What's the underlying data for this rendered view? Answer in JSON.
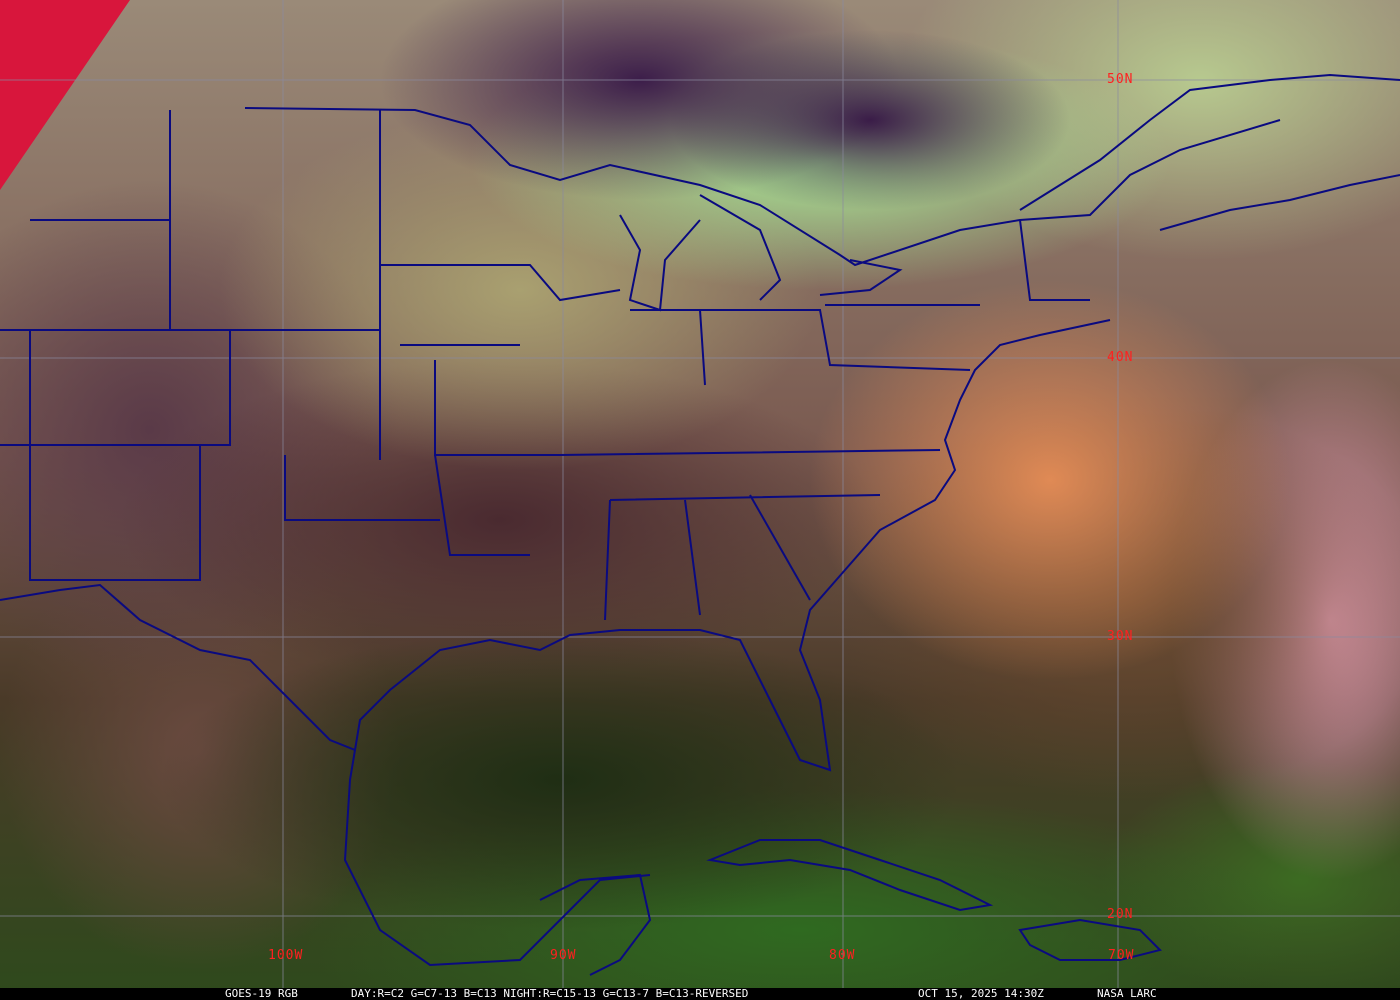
{
  "image": {
    "type": "satellite-rgb-composite",
    "colors": {
      "borders": "#0a0a80",
      "grid": "#8a8aa0",
      "labels": "#ff2020",
      "caption_bg": "#000000",
      "caption_text": "#ffffff"
    }
  },
  "grid_labels": {
    "lat": [
      "50N",
      "40N",
      "30N",
      "20N"
    ],
    "lon": [
      "100W",
      "90W",
      "80W",
      "70W"
    ]
  },
  "caption": {
    "satellite": "GOES-19 RGB",
    "recipe": "DAY:R=C2 G=C7-13 B=C13 NIGHT:R=C15-13 G=C13-7 B=C13-REVERSED",
    "datetime": "OCT 15, 2025 14:30Z",
    "credit": "NASA LARC"
  }
}
